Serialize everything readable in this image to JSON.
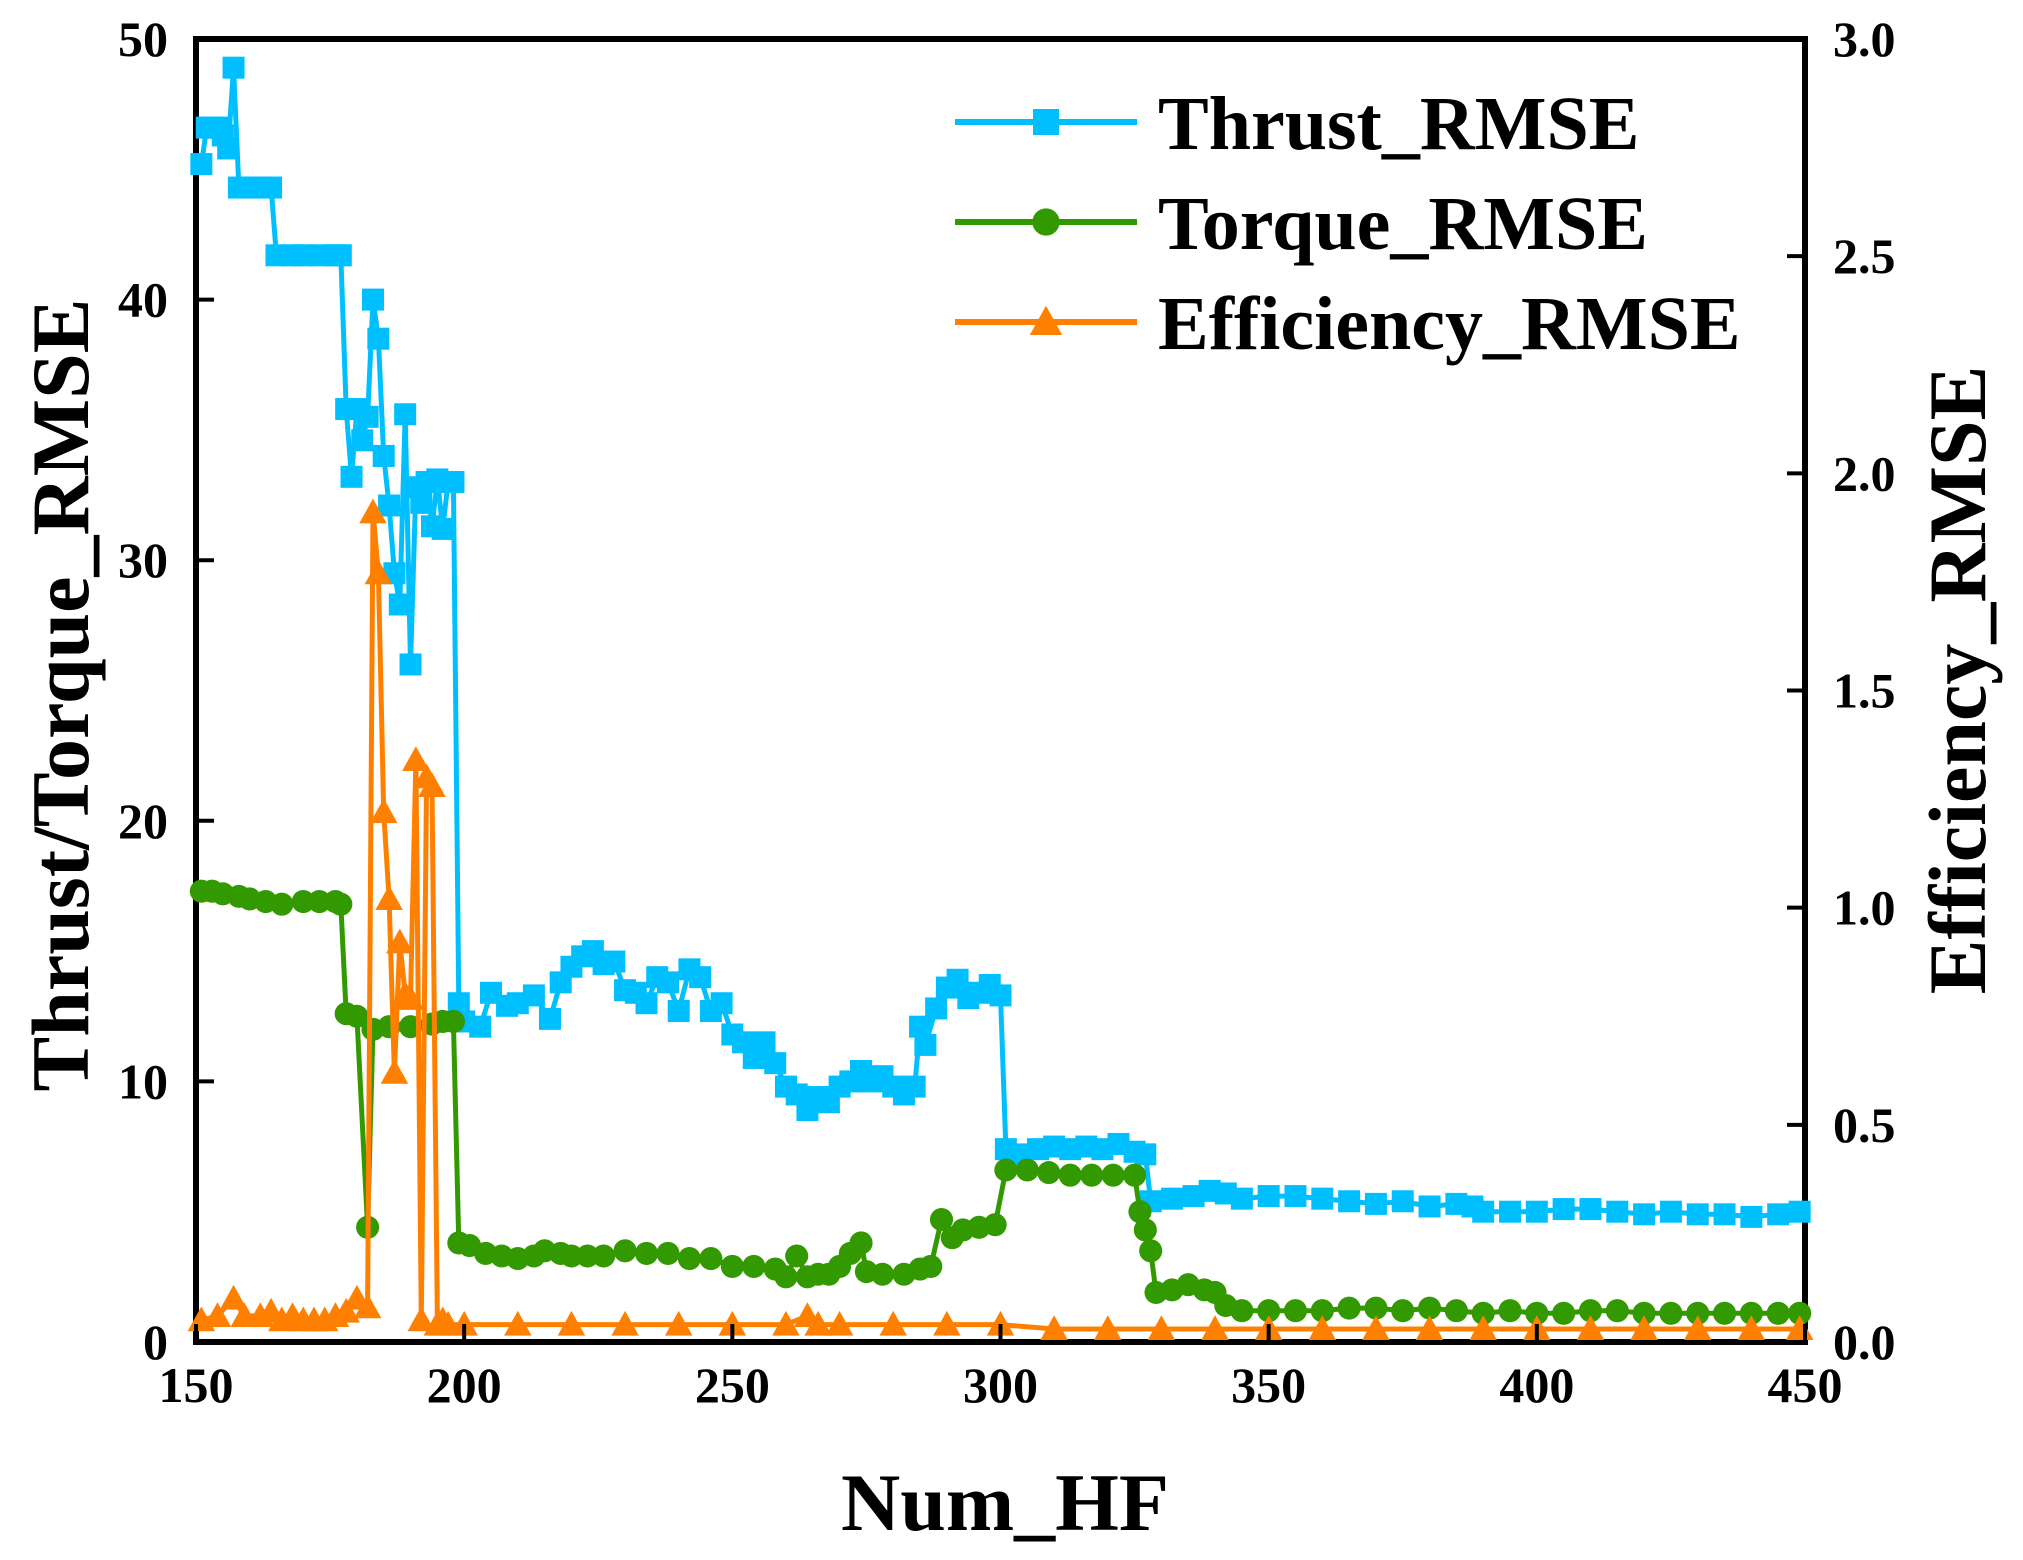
{
  "chart_data": {
    "type": "line",
    "xlabel": "Num_HF",
    "ylabel_left": "Thrust/Torque_RMSE",
    "ylabel_right": "Efficiency_RMSE",
    "xlim": [
      150,
      450
    ],
    "ylim_left": [
      0,
      50
    ],
    "ylim_right": [
      0.0,
      3.0
    ],
    "x_ticks": [
      "150",
      "200",
      "250",
      "300",
      "350",
      "400",
      "450"
    ],
    "y_left_ticks": [
      "0",
      "10",
      "20",
      "30",
      "40",
      "50"
    ],
    "y_right_ticks": [
      "0.0",
      "0.5",
      "1.0",
      "1.5",
      "2.0",
      "2.5",
      "3.0"
    ],
    "grid": false,
    "legend_position": "top-right",
    "series": [
      {
        "name": "Thrust_RMSE",
        "axis": "left",
        "color": "#00BFFF",
        "marker": "square",
        "points": [
          [
            151,
            45.2
          ],
          [
            152,
            46.6
          ],
          [
            153,
            46.6
          ],
          [
            154,
            46.6
          ],
          [
            155,
            46.3
          ],
          [
            156,
            45.8
          ],
          [
            157,
            48.9
          ],
          [
            158,
            44.3
          ],
          [
            160,
            44.3
          ],
          [
            162,
            44.3
          ],
          [
            164,
            44.3
          ],
          [
            165,
            41.7
          ],
          [
            168,
            41.7
          ],
          [
            170,
            41.7
          ],
          [
            173,
            41.7
          ],
          [
            176,
            41.7
          ],
          [
            177,
            41.7
          ],
          [
            178,
            35.8
          ],
          [
            179,
            33.2
          ],
          [
            180,
            35.8
          ],
          [
            181,
            34.6
          ],
          [
            182,
            35.5
          ],
          [
            183,
            40.0
          ],
          [
            184,
            38.5
          ],
          [
            185,
            34.0
          ],
          [
            186,
            32.1
          ],
          [
            187,
            29.5
          ],
          [
            188,
            28.3
          ],
          [
            189,
            35.6
          ],
          [
            190,
            26.0
          ],
          [
            191,
            32.8
          ],
          [
            192,
            32.2
          ],
          [
            193,
            33.0
          ],
          [
            194,
            31.3
          ],
          [
            195,
            33.1
          ],
          [
            196,
            31.2
          ],
          [
            197,
            33.0
          ],
          [
            198,
            33.0
          ],
          [
            199,
            13.0
          ],
          [
            200,
            12.3
          ],
          [
            203,
            12.1
          ],
          [
            205,
            13.4
          ],
          [
            208,
            12.9
          ],
          [
            210,
            13.0
          ],
          [
            213,
            13.3
          ],
          [
            216,
            12.4
          ],
          [
            218,
            13.8
          ],
          [
            220,
            14.4
          ],
          [
            222,
            14.8
          ],
          [
            224,
            15.0
          ],
          [
            226,
            14.5
          ],
          [
            228,
            14.6
          ],
          [
            230,
            13.5
          ],
          [
            232,
            13.4
          ],
          [
            234,
            13.0
          ],
          [
            236,
            14.0
          ],
          [
            238,
            13.8
          ],
          [
            240,
            12.7
          ],
          [
            242,
            14.3
          ],
          [
            244,
            14.0
          ],
          [
            246,
            12.7
          ],
          [
            248,
            13.0
          ],
          [
            250,
            11.8
          ],
          [
            252,
            11.5
          ],
          [
            254,
            10.9
          ],
          [
            256,
            11.5
          ],
          [
            258,
            10.7
          ],
          [
            260,
            9.8
          ],
          [
            262,
            9.5
          ],
          [
            264,
            8.9
          ],
          [
            266,
            9.4
          ],
          [
            268,
            9.2
          ],
          [
            270,
            9.8
          ],
          [
            272,
            10.0
          ],
          [
            274,
            10.4
          ],
          [
            276,
            10.0
          ],
          [
            278,
            10.2
          ],
          [
            280,
            9.8
          ],
          [
            282,
            9.5
          ],
          [
            284,
            9.8
          ],
          [
            285,
            12.1
          ],
          [
            286,
            11.4
          ],
          [
            288,
            12.8
          ],
          [
            290,
            13.6
          ],
          [
            292,
            13.9
          ],
          [
            294,
            13.2
          ],
          [
            296,
            13.4
          ],
          [
            298,
            13.7
          ],
          [
            300,
            13.3
          ],
          [
            301,
            7.4
          ],
          [
            304,
            7.2
          ],
          [
            307,
            7.4
          ],
          [
            310,
            7.5
          ],
          [
            313,
            7.4
          ],
          [
            316,
            7.5
          ],
          [
            319,
            7.4
          ],
          [
            322,
            7.6
          ],
          [
            325,
            7.3
          ],
          [
            327,
            7.2
          ],
          [
            328,
            5.4
          ],
          [
            332,
            5.5
          ],
          [
            336,
            5.6
          ],
          [
            339,
            5.8
          ],
          [
            342,
            5.7
          ],
          [
            345,
            5.5
          ],
          [
            350,
            5.6
          ],
          [
            355,
            5.6
          ],
          [
            360,
            5.5
          ],
          [
            365,
            5.4
          ],
          [
            370,
            5.3
          ],
          [
            375,
            5.4
          ],
          [
            380,
            5.2
          ],
          [
            385,
            5.3
          ],
          [
            388,
            5.2
          ],
          [
            390,
            5.0
          ],
          [
            395,
            5.0
          ],
          [
            400,
            5.0
          ],
          [
            405,
            5.1
          ],
          [
            410,
            5.1
          ],
          [
            415,
            5.0
          ],
          [
            420,
            4.9
          ],
          [
            425,
            5.0
          ],
          [
            430,
            4.9
          ],
          [
            435,
            4.9
          ],
          [
            440,
            4.8
          ],
          [
            445,
            4.9
          ],
          [
            449,
            5.0
          ]
        ]
      },
      {
        "name": "Torque_RMSE",
        "axis": "left",
        "color": "#339900",
        "marker": "circle",
        "points": [
          [
            151,
            17.3
          ],
          [
            153,
            17.3
          ],
          [
            155,
            17.2
          ],
          [
            158,
            17.1
          ],
          [
            160,
            17.0
          ],
          [
            163,
            16.9
          ],
          [
            166,
            16.8
          ],
          [
            170,
            16.9
          ],
          [
            173,
            16.9
          ],
          [
            176,
            16.9
          ],
          [
            177,
            16.8
          ],
          [
            178,
            12.6
          ],
          [
            180,
            12.5
          ],
          [
            182,
            4.4
          ],
          [
            183,
            12.0
          ],
          [
            186,
            12.1
          ],
          [
            190,
            12.1
          ],
          [
            194,
            12.2
          ],
          [
            196,
            12.3
          ],
          [
            198,
            12.3
          ],
          [
            199,
            3.8
          ],
          [
            201,
            3.7
          ],
          [
            204,
            3.4
          ],
          [
            207,
            3.3
          ],
          [
            210,
            3.2
          ],
          [
            213,
            3.3
          ],
          [
            215,
            3.5
          ],
          [
            218,
            3.4
          ],
          [
            220,
            3.3
          ],
          [
            223,
            3.3
          ],
          [
            226,
            3.3
          ],
          [
            230,
            3.5
          ],
          [
            234,
            3.4
          ],
          [
            238,
            3.4
          ],
          [
            242,
            3.2
          ],
          [
            246,
            3.2
          ],
          [
            250,
            2.9
          ],
          [
            254,
            2.9
          ],
          [
            258,
            2.8
          ],
          [
            260,
            2.5
          ],
          [
            262,
            3.3
          ],
          [
            264,
            2.5
          ],
          [
            266,
            2.6
          ],
          [
            268,
            2.6
          ],
          [
            270,
            2.9
          ],
          [
            272,
            3.4
          ],
          [
            274,
            3.8
          ],
          [
            275,
            2.7
          ],
          [
            278,
            2.6
          ],
          [
            282,
            2.6
          ],
          [
            285,
            2.8
          ],
          [
            287,
            2.9
          ],
          [
            289,
            4.7
          ],
          [
            291,
            4.0
          ],
          [
            293,
            4.3
          ],
          [
            296,
            4.4
          ],
          [
            299,
            4.5
          ],
          [
            301,
            6.6
          ],
          [
            305,
            6.6
          ],
          [
            309,
            6.5
          ],
          [
            313,
            6.4
          ],
          [
            317,
            6.4
          ],
          [
            321,
            6.4
          ],
          [
            325,
            6.4
          ],
          [
            326,
            5.0
          ],
          [
            327,
            4.3
          ],
          [
            328,
            3.5
          ],
          [
            329,
            1.9
          ],
          [
            332,
            2.0
          ],
          [
            335,
            2.2
          ],
          [
            338,
            2.0
          ],
          [
            340,
            1.9
          ],
          [
            342,
            1.4
          ],
          [
            345,
            1.2
          ],
          [
            350,
            1.2
          ],
          [
            355,
            1.2
          ],
          [
            360,
            1.2
          ],
          [
            365,
            1.3
          ],
          [
            370,
            1.3
          ],
          [
            375,
            1.2
          ],
          [
            380,
            1.3
          ],
          [
            385,
            1.2
          ],
          [
            390,
            1.1
          ],
          [
            395,
            1.2
          ],
          [
            400,
            1.1
          ],
          [
            405,
            1.1
          ],
          [
            410,
            1.2
          ],
          [
            415,
            1.2
          ],
          [
            420,
            1.1
          ],
          [
            425,
            1.1
          ],
          [
            430,
            1.1
          ],
          [
            435,
            1.1
          ],
          [
            440,
            1.1
          ],
          [
            445,
            1.1
          ],
          [
            449,
            1.1
          ]
        ]
      },
      {
        "name": "Efficiency_RMSE",
        "axis": "right",
        "color": "#FF8000",
        "marker": "triangle",
        "points": [
          [
            151,
            0.05
          ],
          [
            154,
            0.06
          ],
          [
            157,
            0.1
          ],
          [
            159,
            0.06
          ],
          [
            162,
            0.06
          ],
          [
            164,
            0.07
          ],
          [
            166,
            0.05
          ],
          [
            168,
            0.06
          ],
          [
            170,
            0.05
          ],
          [
            172,
            0.05
          ],
          [
            174,
            0.05
          ],
          [
            176,
            0.06
          ],
          [
            178,
            0.07
          ],
          [
            180,
            0.1
          ],
          [
            182,
            0.08
          ],
          [
            183,
            1.91
          ],
          [
            184,
            1.77
          ],
          [
            185,
            1.22
          ],
          [
            186,
            1.02
          ],
          [
            187,
            0.62
          ],
          [
            188,
            0.92
          ],
          [
            189,
            0.8
          ],
          [
            190,
            0.79
          ],
          [
            191,
            1.34
          ],
          [
            192,
            0.05
          ],
          [
            193,
            1.3
          ],
          [
            194,
            1.28
          ],
          [
            195,
            0.04
          ],
          [
            196,
            0.05
          ],
          [
            197,
            0.04
          ],
          [
            200,
            0.04
          ],
          [
            210,
            0.04
          ],
          [
            220,
            0.04
          ],
          [
            230,
            0.04
          ],
          [
            240,
            0.04
          ],
          [
            250,
            0.04
          ],
          [
            260,
            0.04
          ],
          [
            264,
            0.06
          ],
          [
            266,
            0.04
          ],
          [
            270,
            0.04
          ],
          [
            280,
            0.04
          ],
          [
            290,
            0.04
          ],
          [
            300,
            0.04
          ],
          [
            310,
            0.03
          ],
          [
            320,
            0.03
          ],
          [
            330,
            0.03
          ],
          [
            340,
            0.03
          ],
          [
            350,
            0.03
          ],
          [
            360,
            0.03
          ],
          [
            370,
            0.03
          ],
          [
            380,
            0.03
          ],
          [
            390,
            0.03
          ],
          [
            400,
            0.03
          ],
          [
            410,
            0.03
          ],
          [
            420,
            0.03
          ],
          [
            430,
            0.03
          ],
          [
            440,
            0.03
          ],
          [
            449,
            0.03
          ]
        ]
      }
    ]
  }
}
